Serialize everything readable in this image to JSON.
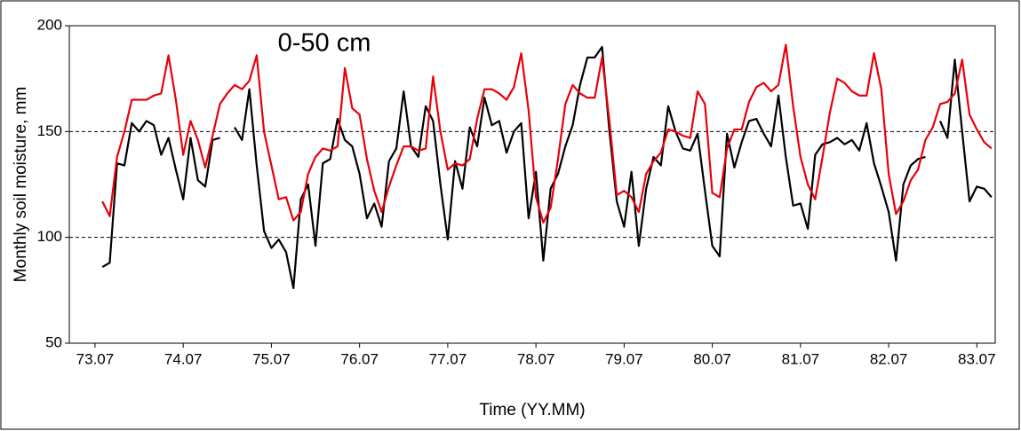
{
  "chart_data": {
    "type": "line",
    "annotation": "0-50 cm",
    "x_label": "Time (YY.MM)",
    "y_label": "Monthly soil moisture, mm",
    "categories": [
      null,
      null,
      null,
      "73.07",
      null,
      null,
      null,
      null,
      null,
      null,
      null,
      null,
      null,
      null,
      null,
      "74.07",
      null,
      null,
      null,
      null,
      null,
      null,
      null,
      null,
      null,
      null,
      null,
      "75.07",
      null,
      null,
      null,
      null,
      null,
      null,
      null,
      null,
      null,
      null,
      null,
      "76.07",
      null,
      null,
      null,
      null,
      null,
      null,
      null,
      null,
      null,
      null,
      null,
      "77.07",
      null,
      null,
      null,
      null,
      null,
      null,
      null,
      null,
      null,
      null,
      null,
      "78.07",
      null,
      null,
      null,
      null,
      null,
      null,
      null,
      null,
      null,
      null,
      null,
      "79.07",
      null,
      null,
      null,
      null,
      null,
      null,
      null,
      null,
      null,
      null,
      null,
      "80.07",
      null,
      null,
      null,
      null,
      null,
      null,
      null,
      null,
      null,
      null,
      null,
      "81.07",
      null,
      null,
      null,
      null,
      null,
      null,
      null,
      null,
      null,
      null,
      null,
      "82.07",
      null,
      null,
      null,
      null,
      null,
      null,
      null,
      null,
      null,
      null,
      null,
      "83.07",
      null,
      null
    ],
    "series": [
      {
        "color": "#000000",
        "values": [
          null,
          null,
          null,
          null,
          86,
          88,
          135,
          134,
          154,
          150,
          155,
          153,
          139,
          147,
          132,
          118,
          147,
          127,
          124,
          146,
          147,
          null,
          152,
          146,
          170,
          134,
          103,
          95,
          99,
          93,
          76,
          118,
          125,
          96,
          135,
          137,
          156,
          146,
          143,
          130,
          109,
          116,
          105,
          136,
          142,
          169,
          143,
          138,
          162,
          155,
          125,
          99,
          136,
          123,
          152,
          143,
          166,
          153,
          155,
          140,
          150,
          154,
          109,
          131,
          89,
          123,
          130,
          143,
          153,
          172,
          185,
          185,
          190,
          150,
          117,
          105,
          131,
          96,
          123,
          138,
          134,
          162,
          150,
          142,
          141,
          149,
          122,
          96,
          91,
          149,
          133,
          145,
          155,
          156,
          149,
          143,
          167,
          138,
          115,
          116,
          104,
          139,
          144,
          145,
          147,
          144,
          146,
          141,
          154,
          135,
          124,
          112,
          89,
          125,
          134,
          137,
          138,
          null,
          155,
          147,
          184,
          150,
          117,
          124,
          123,
          119
        ]
      },
      {
        "color": "#e8000b",
        "values": [
          null,
          null,
          null,
          null,
          117,
          110,
          138,
          150,
          165,
          165,
          165,
          167,
          168,
          186,
          165,
          139,
          155,
          146,
          133,
          148,
          163,
          168,
          172,
          170,
          174,
          186,
          150,
          134,
          118,
          119,
          108,
          112,
          130,
          138,
          142,
          141,
          143,
          180,
          161,
          158,
          137,
          122,
          112,
          124,
          134,
          143,
          143,
          141,
          142,
          176,
          150,
          132,
          135,
          134,
          137,
          156,
          170,
          170,
          168,
          165,
          171,
          187,
          160,
          119,
          107,
          114,
          137,
          163,
          172,
          168,
          166,
          166,
          185,
          155,
          120,
          122,
          119,
          112,
          130,
          136,
          140,
          151,
          150,
          148,
          147,
          169,
          163,
          121,
          119,
          142,
          151,
          151,
          164,
          171,
          173,
          169,
          172,
          191,
          162,
          138,
          125,
          118,
          138,
          159,
          175,
          173,
          169,
          167,
          167,
          187,
          170,
          130,
          111,
          117,
          127,
          132,
          146,
          152,
          163,
          164,
          168,
          184,
          158,
          151,
          145,
          142
        ]
      }
    ],
    "ylim": [
      50,
      200
    ],
    "yticks": [
      50,
      100,
      150,
      200
    ],
    "grid": true
  }
}
